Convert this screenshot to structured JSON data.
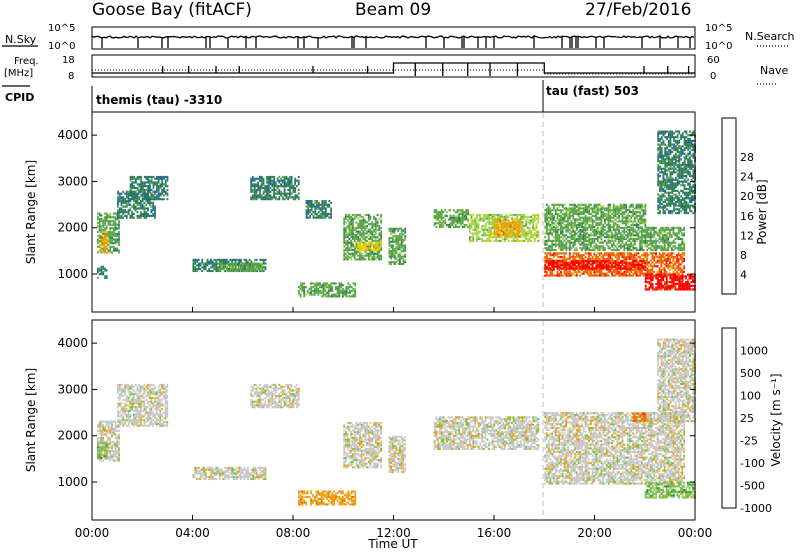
{
  "header": {
    "station": "Goose Bay (fitACF)",
    "beam": "Beam 09",
    "date": "27/Feb/2016"
  },
  "strip_labels": {
    "nsky": "N.Sky",
    "nsearch": "N.Search",
    "freq_line1": "Freq.",
    "freq_line2": "[MHz]",
    "nave": "Nave",
    "cpid": "CPID"
  },
  "strip_ticks": {
    "nsky_top": "10^5",
    "nsky_bottom": "10^0",
    "freq_top": "18",
    "freq_bottom": "8",
    "nave_top": "60",
    "nave_bottom": "0"
  },
  "cpid_modes": [
    {
      "name": "themis (tau) -3310",
      "start_hour": 0,
      "end_hour": 18
    },
    {
      "name": "tau (fast) 503",
      "start_hour": 18,
      "end_hour": 24
    }
  ],
  "x_axis": {
    "title": "Time UT",
    "ticks": [
      "00:00",
      "04:00",
      "08:00",
      "12:00",
      "16:00",
      "20:00",
      "00:00"
    ],
    "range_hours": [
      0,
      24
    ]
  },
  "power_panel": {
    "ylabel": "Slant Range [km]",
    "yticks": [
      "1000",
      "2000",
      "3000",
      "4000"
    ],
    "colorbar_label": "Power [dB]",
    "colorbar_ticks": [
      "4",
      "8",
      "12",
      "16",
      "20",
      "24",
      "28"
    ],
    "colors": [
      "#0000ff",
      "#1f5fb4",
      "#2e7d5a",
      "#5aa54a",
      "#9fd24d",
      "#f0d000",
      "#f5a000",
      "#f06000",
      "#ff0000"
    ]
  },
  "velocity_panel": {
    "ylabel": "Slant Range [km]",
    "yticks": [
      "1000",
      "2000",
      "3000",
      "4000"
    ],
    "colorbar_label": "Velocity [m s⁻¹]",
    "colorbar_ticks": [
      "1000",
      "500",
      "100",
      "25",
      "-25",
      "-100",
      "-500",
      "-1000"
    ],
    "colors": [
      "#1d3aa8",
      "#2a6a8a",
      "#2e8b57",
      "#7cc040",
      "#c8c8c8",
      "#f0a000",
      "#f07000",
      "#ff2000"
    ]
  },
  "chart_data": {
    "type": "heatmap",
    "x_unit": "hours UT",
    "y_unit": "km",
    "xlim": [
      0,
      24
    ],
    "ylim": [
      180,
      4500
    ],
    "power_regions": [
      {
        "t0": 0.2,
        "t1": 1.1,
        "r0": 1450,
        "r1": 2300,
        "level": 3
      },
      {
        "t0": 0.3,
        "t1": 0.6,
        "r0": 1450,
        "r1": 1900,
        "level": 6
      },
      {
        "t0": 1.0,
        "t1": 2.5,
        "r0": 2200,
        "r1": 2800,
        "level": 2
      },
      {
        "t0": 1.5,
        "t1": 3.0,
        "r0": 2600,
        "r1": 3100,
        "level": 2
      },
      {
        "t0": 0.2,
        "t1": 0.6,
        "r0": 900,
        "r1": 1150,
        "level": 2
      },
      {
        "t0": 4.0,
        "t1": 6.9,
        "r0": 1050,
        "r1": 1300,
        "level": 2
      },
      {
        "t0": 5.0,
        "t1": 6.8,
        "r0": 1050,
        "r1": 1250,
        "level": 3
      },
      {
        "t0": 6.3,
        "t1": 8.2,
        "r0": 2600,
        "r1": 3100,
        "level": 2
      },
      {
        "t0": 8.5,
        "t1": 9.5,
        "r0": 2200,
        "r1": 2600,
        "level": 2
      },
      {
        "t0": 8.2,
        "t1": 10.5,
        "r0": 500,
        "r1": 800,
        "level": 3
      },
      {
        "t0": 10.0,
        "t1": 11.5,
        "r0": 1300,
        "r1": 2300,
        "level": 3
      },
      {
        "t0": 10.5,
        "t1": 11.5,
        "r0": 1500,
        "r1": 1700,
        "level": 5
      },
      {
        "t0": 11.8,
        "t1": 12.5,
        "r0": 1200,
        "r1": 2000,
        "level": 3
      },
      {
        "t0": 13.6,
        "t1": 15.0,
        "r0": 2000,
        "r1": 2400,
        "level": 3
      },
      {
        "t0": 15.0,
        "t1": 17.8,
        "r0": 1700,
        "r1": 2300,
        "level": 4
      },
      {
        "t0": 16.0,
        "t1": 17.0,
        "r0": 1800,
        "r1": 2200,
        "level": 6
      },
      {
        "t0": 18.0,
        "t1": 22.0,
        "r0": 2000,
        "r1": 2500,
        "level": 3
      },
      {
        "t0": 18.0,
        "t1": 23.6,
        "r0": 1500,
        "r1": 2000,
        "level": 3
      },
      {
        "t0": 18.0,
        "t1": 23.6,
        "r0": 950,
        "r1": 1450,
        "level": 7
      },
      {
        "t0": 18.0,
        "t1": 22.0,
        "r0": 1100,
        "r1": 1300,
        "level": 8
      },
      {
        "t0": 22.0,
        "t1": 24.0,
        "r0": 650,
        "r1": 1000,
        "level": 8
      },
      {
        "t0": 22.5,
        "t1": 24.0,
        "r0": 2300,
        "r1": 4100,
        "level": 2
      }
    ],
    "velocity_regions": [
      {
        "t0": 0.2,
        "t1": 1.1,
        "r0": 1450,
        "r1": 2300,
        "level": 4
      },
      {
        "t0": 0.2,
        "t1": 0.6,
        "r0": 1500,
        "r1": 1900,
        "level": 3
      },
      {
        "t0": 1.0,
        "t1": 3.0,
        "r0": 2200,
        "r1": 3100,
        "level": 4
      },
      {
        "t0": 4.0,
        "t1": 6.9,
        "r0": 1050,
        "r1": 1300,
        "level": 4
      },
      {
        "t0": 6.3,
        "t1": 8.2,
        "r0": 2600,
        "r1": 3100,
        "level": 4
      },
      {
        "t0": 8.2,
        "t1": 10.5,
        "r0": 500,
        "r1": 800,
        "level": 5
      },
      {
        "t0": 10.0,
        "t1": 11.5,
        "r0": 1300,
        "r1": 2300,
        "level": 4
      },
      {
        "t0": 11.8,
        "t1": 12.5,
        "r0": 1200,
        "r1": 2000,
        "level": 4
      },
      {
        "t0": 13.6,
        "t1": 17.8,
        "r0": 1700,
        "r1": 2400,
        "level": 4
      },
      {
        "t0": 18.0,
        "t1": 23.6,
        "r0": 950,
        "r1": 2500,
        "level": 4
      },
      {
        "t0": 22.0,
        "t1": 24.0,
        "r0": 650,
        "r1": 1000,
        "level": 3
      },
      {
        "t0": 21.5,
        "t1": 22.0,
        "r0": 2300,
        "r1": 2500,
        "level": 6
      },
      {
        "t0": 22.5,
        "t1": 24.0,
        "r0": 2300,
        "r1": 4100,
        "level": 4
      }
    ]
  }
}
